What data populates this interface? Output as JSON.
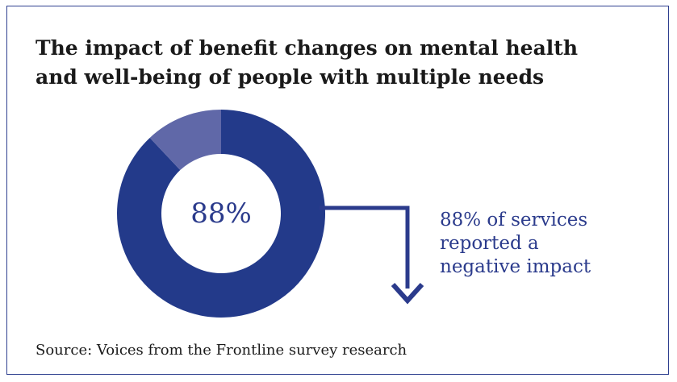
{
  "title_lines": [
    "The impact of benefit changes on mental health",
    "and well-being of people with multiple needs"
  ],
  "chart_data": {
    "type": "pie",
    "donut": true,
    "center_label": "88%",
    "slices": [
      {
        "value": 88,
        "color": "#233a8a"
      },
      {
        "value": 12,
        "color": "#6068a8"
      }
    ]
  },
  "callout_lines": [
    "88% of services",
    "reported a",
    "negative impact"
  ],
  "source": "Source: Voices from the Frontline survey research",
  "colors": {
    "primary": "#233a8a",
    "secondary": "#6068a8",
    "text": "#1a1a1a",
    "callout_text": "#2b3b8c"
  }
}
